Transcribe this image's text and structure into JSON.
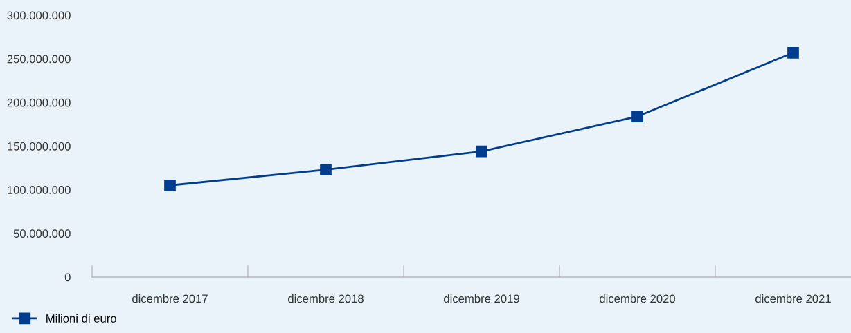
{
  "chart_data": {
    "type": "line",
    "categories": [
      "dicembre 2017",
      "dicembre 2018",
      "dicembre 2019",
      "dicembre 2020",
      "dicembre 2021"
    ],
    "series": [
      {
        "name": "Milioni di euro",
        "color": "#003d8f",
        "values": [
          105000000,
          123000000,
          144000000,
          184000000,
          257000000
        ]
      }
    ],
    "ylim": [
      0,
      300000000
    ],
    "yticks": [
      0,
      {
        "value": 50000000,
        "label": "50.000.000"
      },
      {
        "value": 100000000,
        "label": "100.000.000"
      },
      {
        "value": 150000000,
        "label": "150.000.000"
      },
      {
        "value": 200000000,
        "label": "200.000.000"
      },
      {
        "value": 250000000,
        "label": "250.000.000"
      },
      {
        "value": 300000000,
        "label": "300.000.000"
      }
    ],
    "marker": "square",
    "line_style": "solid",
    "grid": false,
    "legend": "bottom left"
  }
}
